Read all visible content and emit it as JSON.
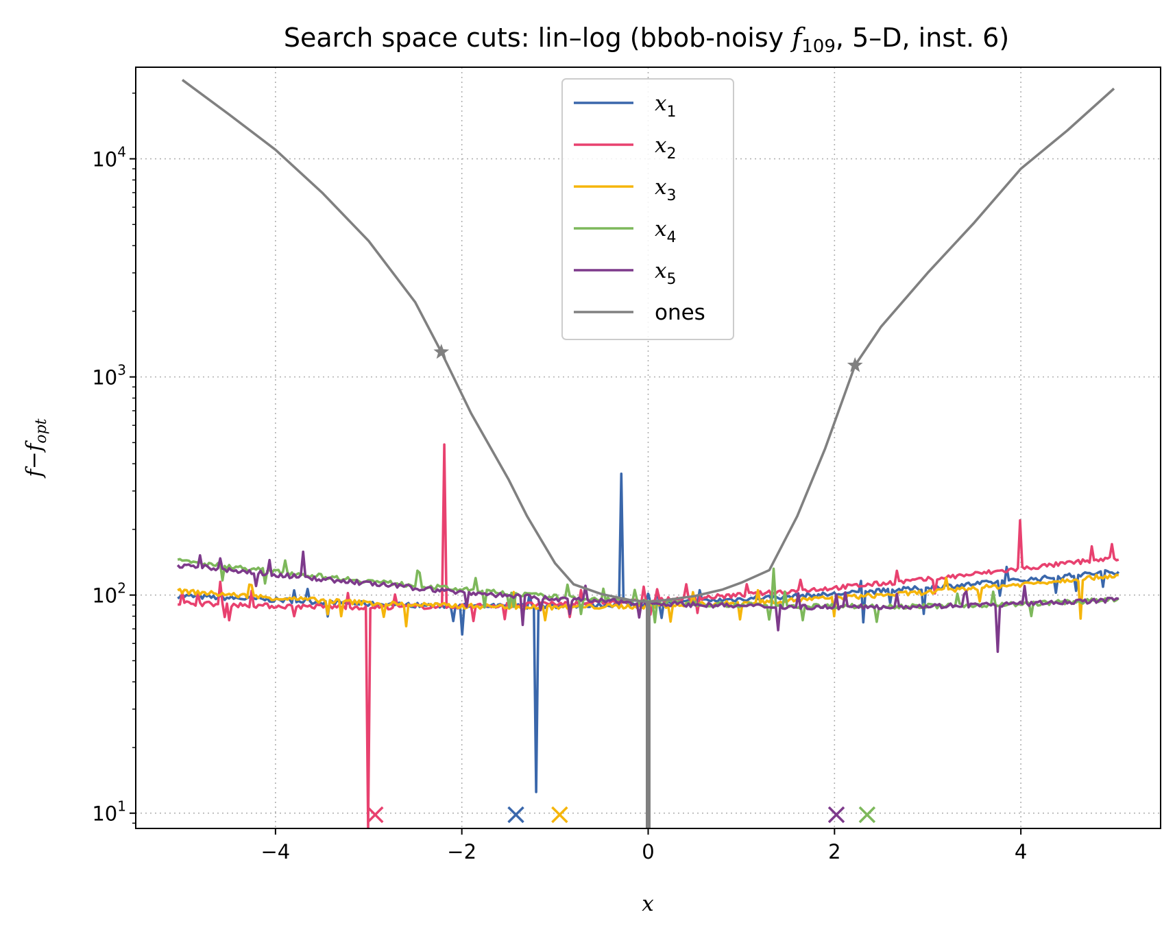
{
  "chart_data": {
    "type": "line",
    "title": {
      "prefix": "Search space cuts: lin–log (bbob-noisy ",
      "func_italic": "f",
      "func_sub": "109",
      "suffix": ", 5–D, inst. 6)"
    },
    "xlabel": "x",
    "ylabel": {
      "main": "f",
      "minus": "−",
      "sub_main": "f",
      "sub": "opt"
    },
    "xlim": [
      -5.5,
      5.5
    ],
    "ylim_log10": [
      0.93,
      4.42
    ],
    "yscale": "log",
    "grid": true,
    "x_ticks": [
      {
        "value": -4,
        "label": "−4"
      },
      {
        "value": -2,
        "label": "−2"
      },
      {
        "value": 0,
        "label": "0"
      },
      {
        "value": 2,
        "label": "2"
      },
      {
        "value": 4,
        "label": "4"
      }
    ],
    "y_ticks": [
      {
        "value": 10,
        "base": "10",
        "exp": "1"
      },
      {
        "value": 100,
        "base": "10",
        "exp": "2"
      },
      {
        "value": 1000,
        "base": "10",
        "exp": "3"
      },
      {
        "value": 10000,
        "base": "10",
        "exp": "4"
      }
    ],
    "legend_placement": "top-center",
    "series": [
      {
        "name": "x",
        "sub": "1",
        "color": "#3a67ab",
        "trend": [
          [
            -5,
            99
          ],
          [
            -4,
            95
          ],
          [
            -3,
            91
          ],
          [
            -2,
            89
          ],
          [
            -1,
            89
          ],
          [
            0,
            91
          ],
          [
            1,
            96
          ],
          [
            2,
            101
          ],
          [
            3,
            108
          ],
          [
            4,
            117
          ],
          [
            5,
            128
          ]
        ],
        "spikes": [
          [
            -2.0,
            66
          ],
          [
            -1.2,
            12.5
          ],
          [
            -0.3,
            360
          ],
          [
            2.3,
            75
          ],
          [
            2.95,
            82
          ]
        ],
        "marker_x": -1.42
      },
      {
        "name": "x",
        "sub": "2",
        "color": "#e8416f",
        "trend": [
          [
            -5,
            92
          ],
          [
            -4,
            89
          ],
          [
            -3,
            88
          ],
          [
            -2,
            89
          ],
          [
            -1,
            91
          ],
          [
            0,
            94
          ],
          [
            1,
            100
          ],
          [
            2,
            108
          ],
          [
            3,
            118
          ],
          [
            4,
            132
          ],
          [
            5,
            148
          ]
        ],
        "spikes": [
          [
            -4.6,
            115
          ],
          [
            -3.0,
            8.6
          ],
          [
            -2.2,
            490
          ],
          [
            -3.8,
            80
          ],
          [
            3.98,
            220
          ]
        ],
        "marker_x": -2.93
      },
      {
        "name": "x",
        "sub": "3",
        "color": "#f5b50b",
        "trend": [
          [
            -5,
            104
          ],
          [
            -4,
            97
          ],
          [
            -3,
            92
          ],
          [
            -2,
            89
          ],
          [
            -1,
            88
          ],
          [
            0,
            89
          ],
          [
            1,
            92
          ],
          [
            2,
            97
          ],
          [
            3,
            103
          ],
          [
            4,
            112
          ],
          [
            5,
            123
          ]
        ],
        "spikes": [
          [
            -2.6,
            72
          ],
          [
            -3.3,
            80
          ],
          [
            2.0,
            80
          ],
          [
            4.65,
            78
          ]
        ],
        "marker_x": -0.95
      },
      {
        "name": "x",
        "sub": "4",
        "color": "#7db85b",
        "trend": [
          [
            -5,
            143
          ],
          [
            -4,
            128
          ],
          [
            -3,
            116
          ],
          [
            -2,
            106
          ],
          [
            -1,
            98
          ],
          [
            0,
            93
          ],
          [
            1,
            90
          ],
          [
            2,
            89
          ],
          [
            3,
            89
          ],
          [
            4,
            91
          ],
          [
            5,
            95
          ]
        ],
        "spikes": [
          [
            1.35,
            132
          ],
          [
            0.07,
            75
          ],
          [
            3.4,
            88
          ]
        ],
        "marker_x": 2.35
      },
      {
        "name": "x",
        "sub": "5",
        "color": "#7d3a8b",
        "trend": [
          [
            -5,
            137
          ],
          [
            -4,
            124
          ],
          [
            -3,
            113
          ],
          [
            -2,
            103
          ],
          [
            -1,
            96
          ],
          [
            0,
            92
          ],
          [
            1,
            89
          ],
          [
            2,
            88
          ],
          [
            3,
            89
          ],
          [
            4,
            91
          ],
          [
            5,
            95
          ]
        ],
        "spikes": [
          [
            -3.7,
            158
          ],
          [
            -1.35,
            73
          ],
          [
            1.4,
            69
          ],
          [
            3.75,
            55
          ],
          [
            -4.2,
            110
          ],
          [
            4.05,
            110
          ]
        ],
        "marker_x": 2.02
      },
      {
        "name": "ones",
        "sub": "",
        "color": "#808080",
        "points": [
          [
            -5,
            23000
          ],
          [
            -4.5,
            16000
          ],
          [
            -4,
            11000
          ],
          [
            -3.5,
            7000
          ],
          [
            -3,
            4200
          ],
          [
            -2.5,
            2200
          ],
          [
            -2.22,
            1300
          ],
          [
            -1.9,
            680
          ],
          [
            -1.5,
            340
          ],
          [
            -1.3,
            230
          ],
          [
            -1.0,
            140
          ],
          [
            -0.8,
            112
          ],
          [
            -0.5,
            101
          ],
          [
            -0.2,
            95
          ],
          [
            0,
            93
          ],
          [
            0.2,
            95
          ],
          [
            0.5,
            99
          ],
          [
            0.8,
            106
          ],
          [
            1.0,
            114
          ],
          [
            1.3,
            130
          ],
          [
            1.6,
            230
          ],
          [
            1.9,
            470
          ],
          [
            2.22,
            1130
          ],
          [
            2.5,
            1700
          ],
          [
            3,
            3000
          ],
          [
            3.5,
            5100
          ],
          [
            4,
            9000
          ],
          [
            4.5,
            13500
          ],
          [
            5,
            21000
          ]
        ],
        "drop_x": 0.0,
        "star_x": [
          -2.22,
          2.22
        ]
      }
    ]
  }
}
